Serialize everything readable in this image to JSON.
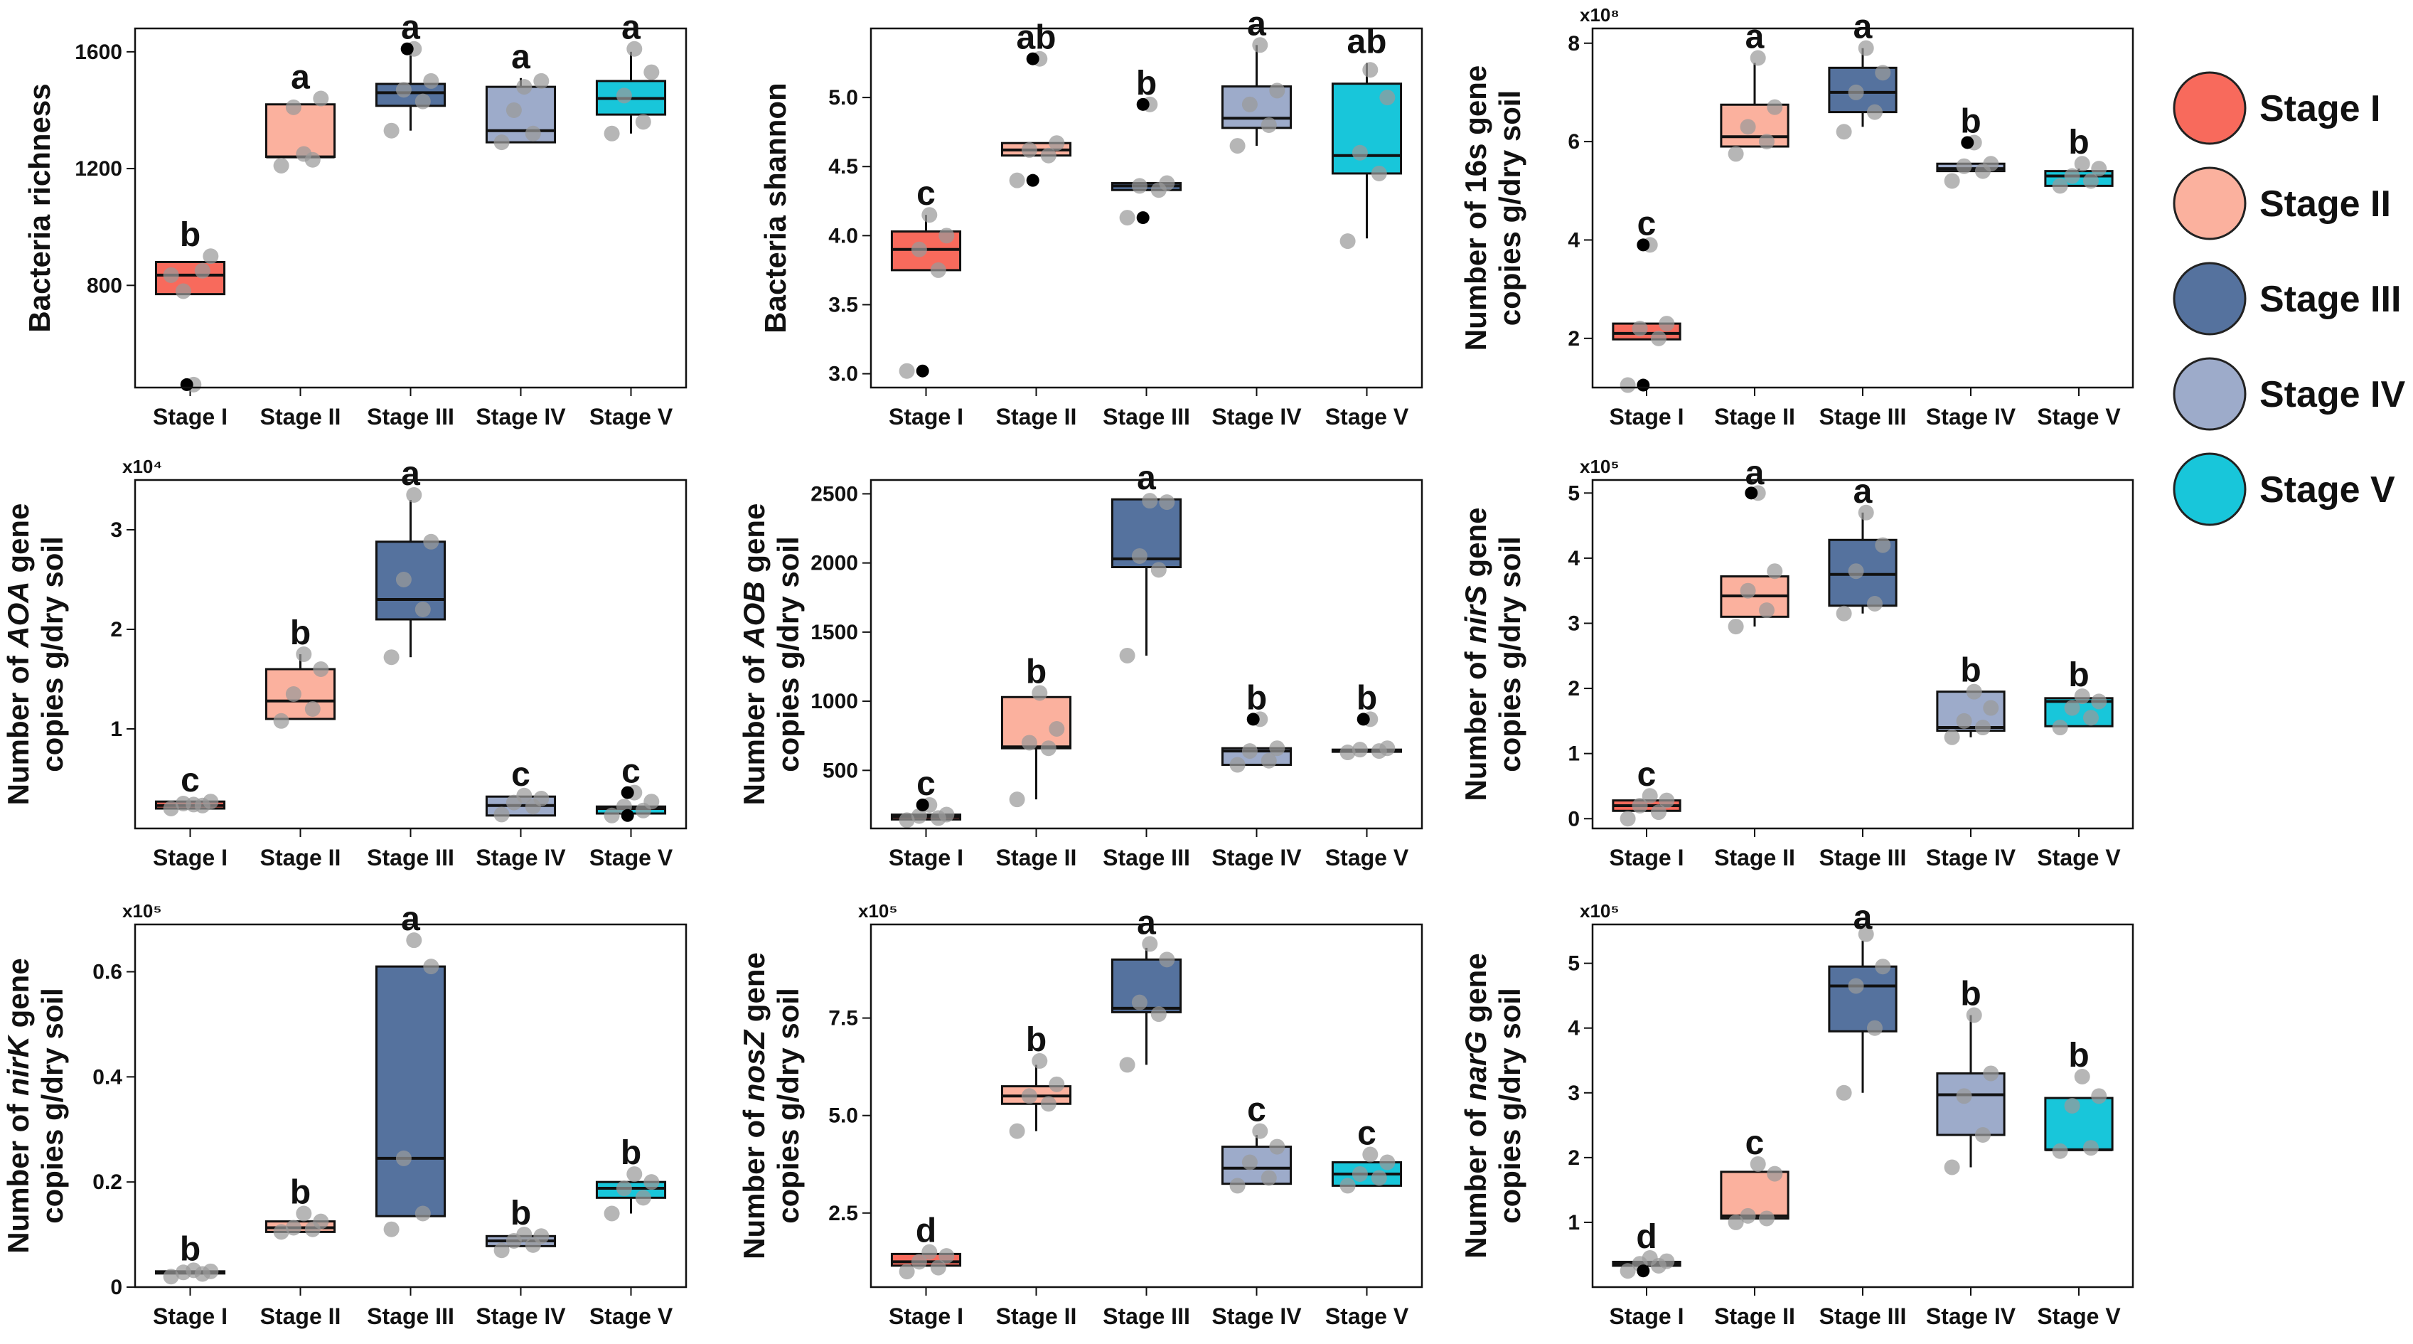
{
  "legend": {
    "items": [
      {
        "label": "Stage I",
        "color": "#F86A5C"
      },
      {
        "label": "Stage II",
        "color": "#FBB19E"
      },
      {
        "label": "Stage III",
        "color": "#55729E"
      },
      {
        "label": "Stage IV",
        "color": "#9DABCA"
      },
      {
        "label": "Stage V",
        "color": "#18C6DA"
      }
    ]
  },
  "chart_data": [
    {
      "type": "box",
      "id": "richness",
      "title": "",
      "ylabel_lines": [
        [
          "Bacteria richness"
        ]
      ],
      "multiplier": "",
      "categories": [
        "Stage I",
        "Stage II",
        "Stage III",
        "Stage IV",
        "Stage V"
      ],
      "yticks": [
        800,
        1200,
        1600
      ],
      "ytick_labels": [
        "800",
        "1200",
        "1600"
      ],
      "ylim": [
        450,
        1680
      ],
      "boxes": [
        {
          "q1": 770,
          "median": 835,
          "q3": 880,
          "wmin": 770,
          "wmax": 880,
          "letter": "b"
        },
        {
          "q1": 1240,
          "median": 1240,
          "q3": 1420,
          "wmin": 1240,
          "wmax": 1420,
          "letter": "a"
        },
        {
          "q1": 1415,
          "median": 1460,
          "q3": 1490,
          "wmin": 1330,
          "wmax": 1600,
          "letter": "a"
        },
        {
          "q1": 1290,
          "median": 1330,
          "q3": 1480,
          "wmin": 1290,
          "wmax": 1510,
          "letter": "a"
        },
        {
          "q1": 1385,
          "median": 1440,
          "q3": 1500,
          "wmin": 1320,
          "wmax": 1600,
          "letter": "a"
        }
      ],
      "points": [
        [
          835,
          850,
          780,
          900,
          460
        ],
        [
          1210,
          1230,
          1410,
          1440,
          1250
        ],
        [
          1330,
          1430,
          1470,
          1500,
          1610
        ],
        [
          1290,
          1320,
          1400,
          1500,
          1480
        ],
        [
          1320,
          1360,
          1450,
          1530,
          1610
        ]
      ],
      "outliers": [
        [
          460
        ],
        [],
        [
          1610
        ],
        [],
        []
      ]
    },
    {
      "type": "box",
      "id": "shannon",
      "ylabel_lines": [
        [
          "Bacteria shannon"
        ]
      ],
      "multiplier": "",
      "categories": [
        "Stage I",
        "Stage II",
        "Stage III",
        "Stage IV",
        "Stage V"
      ],
      "yticks": [
        3.0,
        3.5,
        4.0,
        4.5,
        5.0
      ],
      "ytick_labels": [
        "3.0",
        "3.5",
        "4.0",
        "4.5",
        "5.0"
      ],
      "ylim": [
        2.9,
        5.5
      ],
      "boxes": [
        {
          "q1": 3.75,
          "median": 3.9,
          "q3": 4.03,
          "wmin": 3.75,
          "wmax": 4.15,
          "letter": "c"
        },
        {
          "q1": 4.58,
          "median": 4.62,
          "q3": 4.67,
          "wmin": 4.58,
          "wmax": 4.67,
          "letter": "ab"
        },
        {
          "q1": 4.33,
          "median": 4.36,
          "q3": 4.38,
          "wmin": 4.33,
          "wmax": 4.38,
          "letter": "b"
        },
        {
          "q1": 4.78,
          "median": 4.85,
          "q3": 5.08,
          "wmin": 4.65,
          "wmax": 5.38,
          "letter": "a"
        },
        {
          "q1": 4.45,
          "median": 4.58,
          "q3": 5.1,
          "wmin": 3.98,
          "wmax": 5.25,
          "letter": "ab"
        }
      ],
      "points": [
        [
          3.02,
          3.75,
          3.9,
          4.0,
          4.15
        ],
        [
          4.4,
          4.58,
          4.62,
          4.67,
          5.28
        ],
        [
          4.13,
          4.33,
          4.36,
          4.38,
          4.95
        ],
        [
          4.65,
          4.8,
          4.95,
          5.05,
          5.38
        ],
        [
          3.96,
          4.45,
          4.6,
          5.0,
          5.2
        ]
      ],
      "outliers": [
        [
          3.02
        ],
        [
          5.28,
          4.4
        ],
        [
          4.95,
          4.13
        ],
        [],
        []
      ]
    },
    {
      "type": "box",
      "id": "16s",
      "ylabel_lines": [
        [
          "Number of 16s gene"
        ],
        [
          "copies g/dry soil"
        ]
      ],
      "multiplier": "x10⁸",
      "categories": [
        "Stage I",
        "Stage II",
        "Stage III",
        "Stage IV",
        "Stage V"
      ],
      "yticks": [
        2,
        4,
        6,
        8
      ],
      "ytick_labels": [
        "2",
        "4",
        "6",
        "8"
      ],
      "ylim": [
        1.0,
        8.3
      ],
      "boxes": [
        {
          "q1": 1.98,
          "median": 2.1,
          "q3": 2.3,
          "wmin": 1.98,
          "wmax": 2.3,
          "letter": "c"
        },
        {
          "q1": 5.9,
          "median": 6.1,
          "q3": 6.75,
          "wmin": 5.9,
          "wmax": 7.6,
          "letter": "a"
        },
        {
          "q1": 6.6,
          "median": 7.0,
          "q3": 7.5,
          "wmin": 6.3,
          "wmax": 7.9,
          "letter": "a"
        },
        {
          "q1": 5.4,
          "median": 5.45,
          "q3": 5.55,
          "wmin": 5.4,
          "wmax": 5.55,
          "letter": "b"
        },
        {
          "q1": 5.1,
          "median": 5.3,
          "q3": 5.4,
          "wmin": 5.1,
          "wmax": 5.45,
          "letter": "b"
        }
      ],
      "points": [
        [
          1.05,
          2.0,
          2.2,
          2.3,
          3.9
        ],
        [
          5.75,
          6.0,
          6.3,
          6.7,
          7.7
        ],
        [
          6.2,
          6.6,
          7.0,
          7.4,
          7.9
        ],
        [
          5.2,
          5.4,
          5.5,
          5.55,
          5.98
        ],
        [
          5.1,
          5.2,
          5.3,
          5.45,
          5.55
        ]
      ],
      "outliers": [
        [
          1.05,
          3.9
        ],
        [],
        [],
        [
          5.98
        ],
        []
      ]
    },
    {
      "type": "box",
      "id": "aoa",
      "ylabel_lines": [
        [
          "Number of ",
          "AOA",
          " gene"
        ],
        [
          "copies g/dry soil"
        ]
      ],
      "multiplier": "x10⁴",
      "categories": [
        "Stage I",
        "Stage II",
        "Stage III",
        "Stage IV",
        "Stage V"
      ],
      "yticks": [
        1,
        2,
        3
      ],
      "ytick_labels": [
        "1",
        "2",
        "3"
      ],
      "ylim": [
        0.0,
        3.5
      ],
      "boxes": [
        {
          "q1": 0.2,
          "median": 0.23,
          "q3": 0.27,
          "wmin": 0.2,
          "wmax": 0.27,
          "letter": "c"
        },
        {
          "q1": 1.1,
          "median": 1.28,
          "q3": 1.6,
          "wmin": 1.1,
          "wmax": 1.75,
          "letter": "b"
        },
        {
          "q1": 2.1,
          "median": 2.3,
          "q3": 2.88,
          "wmin": 1.72,
          "wmax": 3.3,
          "letter": "a"
        },
        {
          "q1": 0.13,
          "median": 0.23,
          "q3": 0.32,
          "wmin": 0.13,
          "wmax": 0.32,
          "letter": "c"
        },
        {
          "q1": 0.15,
          "median": 0.2,
          "q3": 0.22,
          "wmin": 0.15,
          "wmax": 0.22,
          "letter": "c"
        }
      ],
      "points": [
        [
          0.2,
          0.23,
          0.25,
          0.27,
          0.24
        ],
        [
          1.08,
          1.2,
          1.35,
          1.6,
          1.75
        ],
        [
          1.72,
          2.2,
          2.5,
          2.88,
          3.35
        ],
        [
          0.14,
          0.22,
          0.26,
          0.3,
          0.33
        ],
        [
          0.13,
          0.18,
          0.22,
          0.27,
          0.36
        ]
      ],
      "outliers": [
        [],
        [],
        [],
        [],
        [
          0.13,
          0.36
        ]
      ]
    },
    {
      "type": "box",
      "id": "aob",
      "ylabel_lines": [
        [
          "Number of ",
          "AOB",
          " gene"
        ],
        [
          "copies g/dry soil"
        ]
      ],
      "multiplier": "",
      "categories": [
        "Stage I",
        "Stage II",
        "Stage III",
        "Stage IV",
        "Stage V"
      ],
      "yticks": [
        500,
        1000,
        1500,
        2000,
        2500
      ],
      "ytick_labels": [
        "500",
        "1000",
        "1500",
        "2000",
        "2500"
      ],
      "ylim": [
        80,
        2600
      ],
      "boxes": [
        {
          "q1": 145,
          "median": 165,
          "q3": 180,
          "wmin": 145,
          "wmax": 180,
          "letter": "c"
        },
        {
          "q1": 660,
          "median": 670,
          "q3": 1030,
          "wmin": 290,
          "wmax": 1030,
          "letter": "b"
        },
        {
          "q1": 1970,
          "median": 2030,
          "q3": 2460,
          "wmin": 1330,
          "wmax": 2460,
          "letter": "a"
        },
        {
          "q1": 540,
          "median": 640,
          "q3": 660,
          "wmin": 540,
          "wmax": 660,
          "letter": "b"
        },
        {
          "q1": 640,
          "median": 645,
          "q3": 650,
          "wmin": 640,
          "wmax": 650,
          "letter": "b"
        }
      ],
      "points": [
        [
          140,
          155,
          170,
          180,
          250
        ],
        [
          290,
          660,
          700,
          800,
          1060
        ],
        [
          1330,
          1950,
          2050,
          2440,
          2450
        ],
        [
          540,
          570,
          640,
          660,
          870
        ],
        [
          630,
          640,
          650,
          660,
          870
        ]
      ],
      "outliers": [
        [
          250
        ],
        [],
        [],
        [
          870
        ],
        [
          870
        ]
      ]
    },
    {
      "type": "box",
      "id": "nirs",
      "ylabel_lines": [
        [
          "Number of ",
          "nirS",
          " gene"
        ],
        [
          "copies g/dry soil"
        ]
      ],
      "multiplier": "x10⁵",
      "categories": [
        "Stage I",
        "Stage II",
        "Stage III",
        "Stage IV",
        "Stage V"
      ],
      "yticks": [
        0,
        1,
        2,
        3,
        4,
        5
      ],
      "ytick_labels": [
        "0",
        "1",
        "2",
        "3",
        "4",
        "5"
      ],
      "ylim": [
        -0.15,
        5.2
      ],
      "boxes": [
        {
          "q1": 0.12,
          "median": 0.2,
          "q3": 0.28,
          "wmin": 0.12,
          "wmax": 0.28,
          "letter": "c"
        },
        {
          "q1": 3.1,
          "median": 3.42,
          "q3": 3.72,
          "wmin": 2.95,
          "wmax": 3.72,
          "letter": "a"
        },
        {
          "q1": 3.27,
          "median": 3.75,
          "q3": 4.28,
          "wmin": 3.15,
          "wmax": 4.7,
          "letter": "a"
        },
        {
          "q1": 1.35,
          "median": 1.4,
          "q3": 1.95,
          "wmin": 1.25,
          "wmax": 1.95,
          "letter": "b"
        },
        {
          "q1": 1.42,
          "median": 1.8,
          "q3": 1.85,
          "wmin": 1.42,
          "wmax": 1.85,
          "letter": "b"
        }
      ],
      "points": [
        [
          0.0,
          0.1,
          0.2,
          0.28,
          0.35
        ],
        [
          2.95,
          3.2,
          3.5,
          3.8,
          5.0
        ],
        [
          3.15,
          3.3,
          3.8,
          4.2,
          4.7
        ],
        [
          1.25,
          1.4,
          1.5,
          1.7,
          1.95
        ],
        [
          1.4,
          1.55,
          1.7,
          1.8,
          1.88
        ]
      ],
      "outliers": [
        [],
        [
          5.0
        ],
        [],
        [],
        []
      ]
    },
    {
      "type": "box",
      "id": "nirk",
      "ylabel_lines": [
        [
          "Number of ",
          "nirK",
          " gene"
        ],
        [
          "copies g/dry soil"
        ]
      ],
      "multiplier": "x10⁵",
      "categories": [
        "Stage I",
        "Stage II",
        "Stage III",
        "Stage IV",
        "Stage V"
      ],
      "yticks": [
        0.0,
        0.2,
        0.4,
        0.6
      ],
      "ytick_labels": [
        "0",
        "0.2",
        "0.4",
        "0.6"
      ],
      "ylim": [
        0.0,
        0.69
      ],
      "boxes": [
        {
          "q1": 0.027,
          "median": 0.028,
          "q3": 0.03,
          "wmin": 0.027,
          "wmax": 0.03,
          "letter": "b"
        },
        {
          "q1": 0.105,
          "median": 0.113,
          "q3": 0.125,
          "wmin": 0.105,
          "wmax": 0.125,
          "letter": "b"
        },
        {
          "q1": 0.135,
          "median": 0.245,
          "q3": 0.61,
          "wmin": 0.135,
          "wmax": 0.61,
          "letter": "a"
        },
        {
          "q1": 0.078,
          "median": 0.088,
          "q3": 0.097,
          "wmin": 0.078,
          "wmax": 0.097,
          "letter": "b"
        },
        {
          "q1": 0.17,
          "median": 0.188,
          "q3": 0.2,
          "wmin": 0.14,
          "wmax": 0.2,
          "letter": "b"
        }
      ],
      "points": [
        [
          0.02,
          0.025,
          0.028,
          0.03,
          0.032
        ],
        [
          0.105,
          0.11,
          0.113,
          0.125,
          0.14
        ],
        [
          0.11,
          0.14,
          0.245,
          0.61,
          0.66
        ],
        [
          0.07,
          0.08,
          0.088,
          0.097,
          0.1
        ],
        [
          0.14,
          0.17,
          0.188,
          0.2,
          0.215
        ]
      ],
      "outliers": [
        [],
        [],
        [],
        [],
        []
      ]
    },
    {
      "type": "box",
      "id": "nosz",
      "ylabel_lines": [
        [
          "Number of ",
          "nosZ",
          " gene"
        ],
        [
          "copies g/dry soil"
        ]
      ],
      "multiplier": "x10⁵",
      "categories": [
        "Stage I",
        "Stage II",
        "Stage III",
        "Stage IV",
        "Stage V"
      ],
      "yticks": [
        2.5,
        5.0,
        7.5
      ],
      "ytick_labels": [
        "2.5",
        "5.0",
        "7.5"
      ],
      "ylim": [
        0.6,
        9.9
      ],
      "boxes": [
        {
          "q1": 1.15,
          "median": 1.25,
          "q3": 1.45,
          "wmin": 1.15,
          "wmax": 1.45,
          "letter": "d"
        },
        {
          "q1": 5.3,
          "median": 5.5,
          "q3": 5.75,
          "wmin": 4.6,
          "wmax": 6.3,
          "letter": "b"
        },
        {
          "q1": 7.65,
          "median": 7.75,
          "q3": 9.0,
          "wmin": 6.3,
          "wmax": 9.3,
          "letter": "a"
        },
        {
          "q1": 3.25,
          "median": 3.65,
          "q3": 4.2,
          "wmin": 3.25,
          "wmax": 4.5,
          "letter": "c"
        },
        {
          "q1": 3.2,
          "median": 3.5,
          "q3": 3.8,
          "wmin": 3.2,
          "wmax": 3.8,
          "letter": "c"
        }
      ],
      "points": [
        [
          1.0,
          1.1,
          1.25,
          1.4,
          1.5
        ],
        [
          4.6,
          5.3,
          5.5,
          5.8,
          6.4
        ],
        [
          6.3,
          7.6,
          7.9,
          9.0,
          9.4
        ],
        [
          3.2,
          3.4,
          3.8,
          4.2,
          4.6
        ],
        [
          3.2,
          3.4,
          3.5,
          3.8,
          4.0
        ]
      ],
      "outliers": [
        [],
        [],
        [],
        [],
        []
      ]
    },
    {
      "type": "box",
      "id": "narg",
      "ylabel_lines": [
        [
          "Number of ",
          "narG",
          " gene"
        ],
        [
          "copies g/dry soil"
        ]
      ],
      "multiplier": "x10⁵",
      "categories": [
        "Stage I",
        "Stage II",
        "Stage III",
        "Stage IV",
        "Stage V"
      ],
      "yticks": [
        1,
        2,
        3,
        4,
        5
      ],
      "ytick_labels": [
        "1",
        "2",
        "3",
        "4",
        "5"
      ],
      "ylim": [
        0.0,
        5.6
      ],
      "boxes": [
        {
          "q1": 0.33,
          "median": 0.36,
          "q3": 0.39,
          "wmin": 0.33,
          "wmax": 0.39,
          "letter": "d"
        },
        {
          "q1": 1.06,
          "median": 1.1,
          "q3": 1.78,
          "wmin": 1.06,
          "wmax": 1.78,
          "letter": "c"
        },
        {
          "q1": 3.95,
          "median": 4.65,
          "q3": 4.95,
          "wmin": 3.0,
          "wmax": 5.35,
          "letter": "a"
        },
        {
          "q1": 2.35,
          "median": 2.97,
          "q3": 3.3,
          "wmin": 1.85,
          "wmax": 4.2,
          "letter": "b"
        },
        {
          "q1": 2.12,
          "median": 2.12,
          "q3": 2.92,
          "wmin": 2.12,
          "wmax": 2.92,
          "letter": "b"
        }
      ],
      "points": [
        [
          0.25,
          0.33,
          0.36,
          0.4,
          0.45
        ],
        [
          1.0,
          1.06,
          1.1,
          1.75,
          1.9
        ],
        [
          3.0,
          4.0,
          4.65,
          4.95,
          5.45
        ],
        [
          1.85,
          2.35,
          2.95,
          3.3,
          4.2
        ],
        [
          2.1,
          2.15,
          2.8,
          2.95,
          3.25
        ]
      ],
      "outliers": [
        [
          0.25
        ],
        [],
        [],
        [],
        []
      ]
    }
  ]
}
